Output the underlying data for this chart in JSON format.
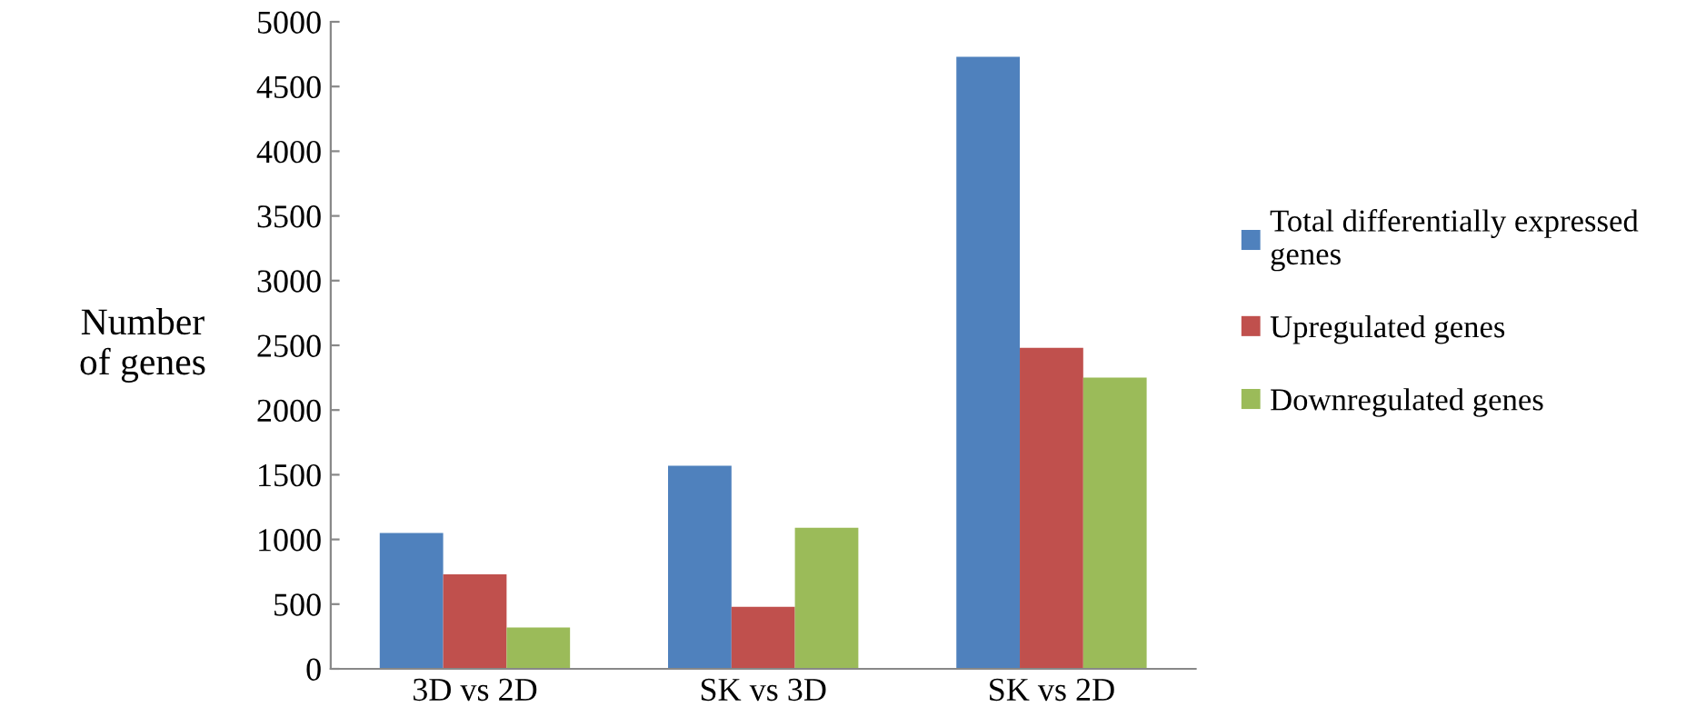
{
  "chart_data": {
    "type": "bar",
    "ylabel": "Number\nof genes",
    "categories": [
      "3D vs 2D",
      "SK vs 3D",
      "SK vs 2D"
    ],
    "series": [
      {
        "name": "Total differentially expressed\ngenes",
        "color": "#4f81bd",
        "values": [
          1050,
          1570,
          4730
        ]
      },
      {
        "name": "Upregulated genes",
        "color": "#c0504d",
        "values": [
          730,
          480,
          2480
        ]
      },
      {
        "name": "Downregulated genes",
        "color": "#9bbb59",
        "values": [
          320,
          1090,
          2250
        ]
      }
    ],
    "ylim": [
      0,
      5000
    ],
    "yticks": [
      0,
      500,
      1000,
      1500,
      2000,
      2500,
      3000,
      3500,
      4000,
      4500,
      5000
    ],
    "grid": false,
    "legend": "right"
  }
}
